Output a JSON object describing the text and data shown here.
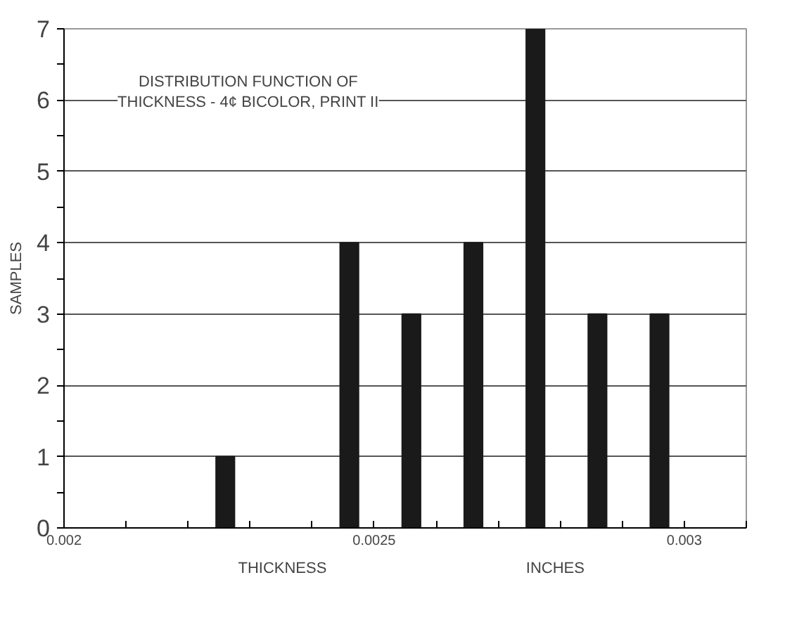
{
  "chart_data": {
    "type": "bar",
    "title": "DISTRIBUTION FUNCTION OF\nTHICKNESS - 4¢ BICOLOR, PRINT II",
    "xlabel": "THICKNESS",
    "ylabel": "SAMPLES",
    "annotations": [
      "INCHES"
    ],
    "x": [
      0.00226,
      0.00246,
      0.00256,
      0.00266,
      0.00276,
      0.00286,
      0.00296
    ],
    "values": [
      1,
      4,
      3,
      4,
      7,
      3,
      3
    ],
    "color": "#1a1a1a",
    "xlim": [
      0.002,
      0.0031
    ],
    "xticks": [
      0.002,
      {
        "value": 0.0021,
        "label": null
      },
      {
        "value": 0.0022,
        "label": null
      },
      {
        "value": 0.0023,
        "label": null
      },
      {
        "value": 0.0024,
        "label": null
      },
      0.0025,
      {
        "value": 0.0026,
        "label": null
      },
      {
        "value": 0.0027,
        "label": null
      },
      {
        "value": 0.0028,
        "label": null
      },
      {
        "value": 0.0029,
        "label": null
      },
      0.003,
      {
        "value": 0.0031,
        "label": null
      }
    ],
    "ylim": [
      0,
      7
    ],
    "yticks": [
      0,
      {
        "value": 0.5,
        "label": null
      },
      1,
      {
        "value": 1.5,
        "label": null
      },
      2,
      {
        "value": 2.5,
        "label": null
      },
      3,
      {
        "value": 3.5,
        "label": null
      },
      4,
      {
        "value": 4.5,
        "label": null
      },
      5,
      {
        "value": 5.5,
        "label": null
      },
      6,
      {
        "value": 6.5,
        "label": null
      },
      7
    ],
    "grid": "y"
  }
}
